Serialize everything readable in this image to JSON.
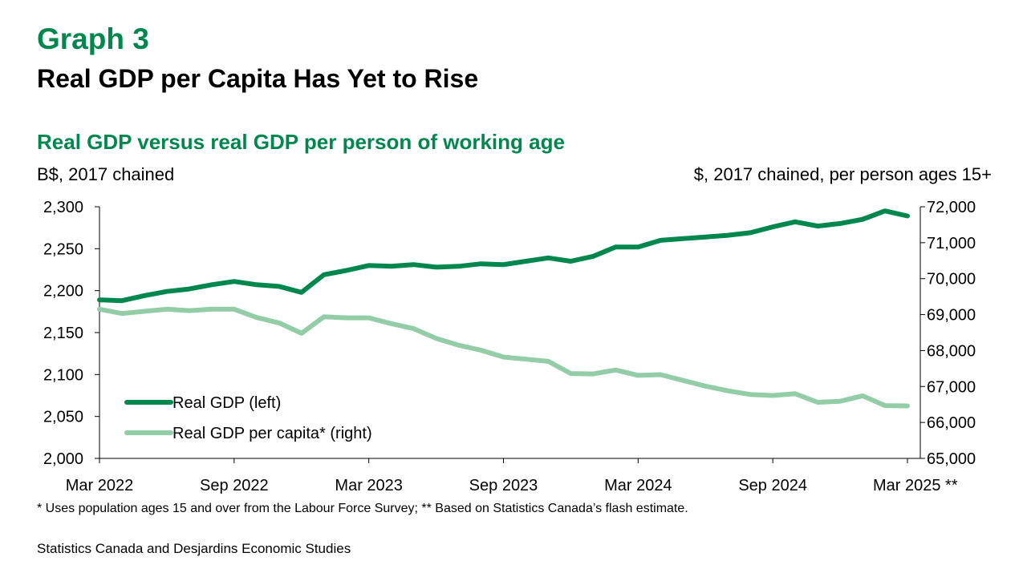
{
  "header": {
    "graph_label": "Graph 3",
    "title": "Real GDP per Capita Has Yet to Rise",
    "subtitle": "Real GDP versus real GDP per person of working age",
    "unit_left": "B$, 2017 chained",
    "unit_right": "$, 2017 chained, per person ages 15+"
  },
  "footer": {
    "footnote": "* Uses population ages 15 and over from the Labour Force Survey; ** Based on Statistics Canada’s flash estimate.",
    "source": "Statistics Canada and Desjardins Economic Studies"
  },
  "colors": {
    "brand": "#00874E",
    "real_gdp": "#00874E",
    "per_capita": "#92CDA7",
    "axis": "#000000"
  },
  "chart_data": {
    "type": "line",
    "x": [
      "Mar 2022",
      "Apr 2022",
      "May 2022",
      "Jun 2022",
      "Jul 2022",
      "Aug 2022",
      "Sep 2022",
      "Oct 2022",
      "Nov 2022",
      "Dec 2022",
      "Jan 2023",
      "Feb 2023",
      "Mar 2023",
      "Apr 2023",
      "May 2023",
      "Jun 2023",
      "Jul 2023",
      "Aug 2023",
      "Sep 2023",
      "Oct 2023",
      "Nov 2023",
      "Dec 2023",
      "Jan 2024",
      "Feb 2024",
      "Mar 2024",
      "Apr 2024",
      "May 2024",
      "Jun 2024",
      "Jul 2024",
      "Aug 2024",
      "Sep 2024",
      "Oct 2024",
      "Nov 2024",
      "Dec 2024",
      "Jan 2025",
      "Feb 2025",
      "Mar 2025"
    ],
    "x_tick_labels": [
      "Mar 2022",
      "Sep 2022",
      "Mar 2023",
      "Sep 2023",
      "Mar 2024",
      "Sep 2024",
      "Mar 2025 **"
    ],
    "x_tick_index": [
      0,
      6,
      12,
      18,
      24,
      30,
      36
    ],
    "left_axis": {
      "ylim": [
        2000,
        2300
      ],
      "ticks": [
        "2,000",
        "2,050",
        "2,100",
        "2,150",
        "2,200",
        "2,250",
        "2,300"
      ]
    },
    "right_axis": {
      "ylim": [
        65000,
        72000
      ],
      "ticks": [
        "65,000",
        "66,000",
        "67,000",
        "68,000",
        "69,000",
        "70,000",
        "71,000",
        "72,000"
      ]
    },
    "series": [
      {
        "name": "Real GDP (left)",
        "axis": "left",
        "values": [
          2189,
          2188,
          2194,
          2199,
          2202,
          2207,
          2211,
          2207,
          2205,
          2198,
          2219,
          2224,
          2230,
          2229,
          2231,
          2228,
          2229,
          2232,
          2231,
          2235,
          2239,
          2235,
          2241,
          2252,
          2252,
          2260,
          2262,
          2264,
          2266,
          2269,
          2276,
          2282,
          2277,
          2280,
          2285,
          2295,
          2289
        ]
      },
      {
        "name": "Real GDP per capita* (right)",
        "axis": "right",
        "values": [
          69150,
          69030,
          69090,
          69150,
          69110,
          69150,
          69150,
          68920,
          68770,
          68480,
          68940,
          68910,
          68910,
          68750,
          68610,
          68340,
          68150,
          68010,
          67820,
          67760,
          67700,
          67360,
          67350,
          67460,
          67310,
          67330,
          67170,
          67010,
          66880,
          66780,
          66750,
          66800,
          66560,
          66590,
          66740,
          66470,
          66460
        ]
      }
    ],
    "legend": {
      "position": "lower-left"
    },
    "grid": false
  }
}
